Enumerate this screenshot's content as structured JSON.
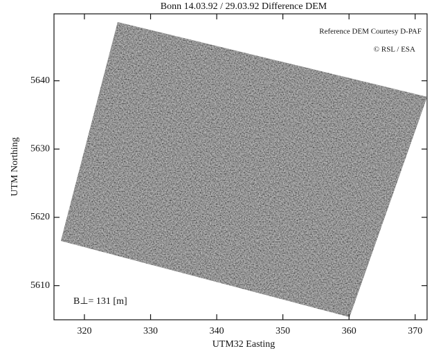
{
  "chart_data": {
    "type": "image",
    "title": "Bonn 14.03.92 / 29.03.92 Difference DEM",
    "annotations": [
      "Reference DEM Courtesy D-PAF",
      "© RSL / ESA",
      "B⊥= 131 [m]"
    ],
    "xlabel": "UTM32 Easting",
    "ylabel": "UTM Northing",
    "xlim": [
      315.4,
      371.8
    ],
    "xticks": [
      320,
      330,
      340,
      350,
      360,
      370
    ],
    "ylim": [
      5605.0,
      5649.8
    ],
    "yticks": [
      5610,
      5620,
      5630,
      5640
    ]
  }
}
